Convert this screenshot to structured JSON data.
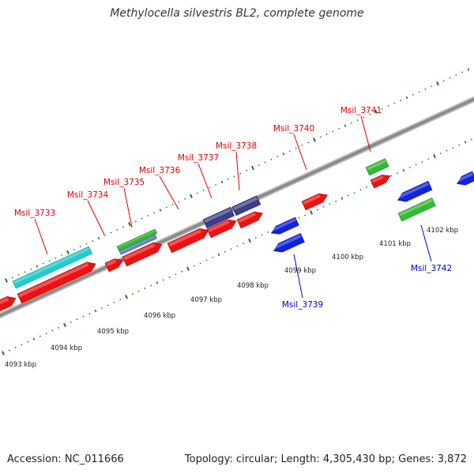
{
  "title": "Methylocella silvestris BL2, complete genome",
  "footer": {
    "accession": "Accession: NC_011666",
    "summary": "Topology: circular; Length: 4,305,430 bp; Genes: 3,872"
  },
  "colors": {
    "backbone": "#8a8a8a",
    "tick_mark": "#1a7a1a",
    "forward_label": "#dd0000",
    "reverse_label": "#0000cc",
    "red_gene": "#ee1111",
    "blue_gene": "#1122dd",
    "green_feature": "#33bb33",
    "cyan_feature": "#22cccc",
    "navy_feature": "#3d3d88",
    "steel_feature": "#6688bb"
  },
  "scale": {
    "ticks": [
      {
        "kbp": 4093,
        "label": "4093 kbp"
      },
      {
        "kbp": 4094,
        "label": "4094 kbp"
      },
      {
        "kbp": 4095,
        "label": "4095 kbp"
      },
      {
        "kbp": 4096,
        "label": "4096 kbp"
      },
      {
        "kbp": 4097,
        "label": "4097 kbp"
      },
      {
        "kbp": 4098,
        "label": "4098 kbp"
      },
      {
        "kbp": 4099,
        "label": "4099 kbp"
      },
      {
        "kbp": 4100,
        "label": "4100 kbp"
      },
      {
        "kbp": 4101,
        "label": "4101 kbp"
      },
      {
        "kbp": 4102,
        "label": "4102 kbp"
      }
    ]
  },
  "genes": [
    {
      "id": "Msil_3733",
      "strand": "forward",
      "color": "red"
    },
    {
      "id": "Msil_3734",
      "strand": "forward",
      "color": "red"
    },
    {
      "id": "Msil_3735",
      "strand": "forward",
      "color": "red"
    },
    {
      "id": "Msil_3736",
      "strand": "forward",
      "color": "red"
    },
    {
      "id": "Msil_3737",
      "strand": "forward",
      "color": "red"
    },
    {
      "id": "Msil_3738",
      "strand": "forward",
      "color": "red"
    },
    {
      "id": "Msil_3739",
      "strand": "reverse",
      "color": "blue"
    },
    {
      "id": "Msil_3740",
      "strand": "forward",
      "color": "red"
    },
    {
      "id": "Msil_3741",
      "strand": "forward",
      "color": "red"
    },
    {
      "id": "Msil_3742",
      "strand": "reverse",
      "color": "blue"
    }
  ]
}
